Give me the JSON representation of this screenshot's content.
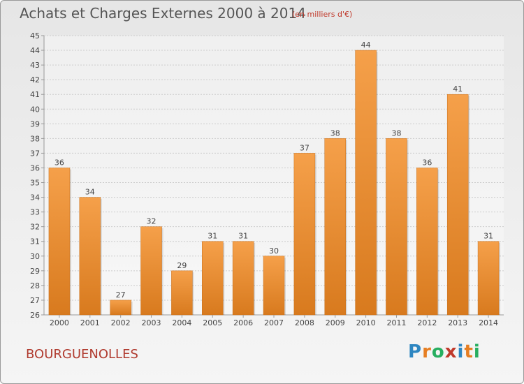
{
  "title": "Achats et Charges Externes 2000 à 2014",
  "subtitle": "(en milliers d'€)",
  "town": "BOURGUENOLLES",
  "logo": {
    "text": "Proxiti",
    "letters": [
      {
        "ch": "P",
        "color": "#2e86c1"
      },
      {
        "ch": "r",
        "color": "#e67e22"
      },
      {
        "ch": "o",
        "color": "#27ae60"
      },
      {
        "ch": "x",
        "color": "#c0392b"
      },
      {
        "ch": "i",
        "color": "#2e86c1"
      },
      {
        "ch": "t",
        "color": "#e67e22"
      },
      {
        "ch": "i",
        "color": "#27ae60"
      }
    ]
  },
  "colors": {
    "bar_light": "#f5a04a",
    "bar_dark": "#d87a1e",
    "grid": "#cccccc",
    "axis": "#999999"
  },
  "chart_data": {
    "type": "bar",
    "categories": [
      "2000",
      "2001",
      "2002",
      "2003",
      "2004",
      "2005",
      "2006",
      "2007",
      "2008",
      "2009",
      "2010",
      "2011",
      "2012",
      "2013",
      "2014"
    ],
    "values": [
      36,
      34,
      27,
      32,
      29,
      31,
      31,
      30,
      37,
      38,
      44,
      38,
      36,
      41,
      31
    ],
    "title": "Achats et Charges Externes 2000 à 2014",
    "xlabel": "",
    "ylabel": "",
    "ylim": [
      26,
      45
    ],
    "yticks": [
      26,
      27,
      28,
      29,
      30,
      31,
      32,
      33,
      34,
      35,
      36,
      37,
      38,
      39,
      40,
      41,
      42,
      43,
      44,
      45
    ],
    "grid": true
  }
}
